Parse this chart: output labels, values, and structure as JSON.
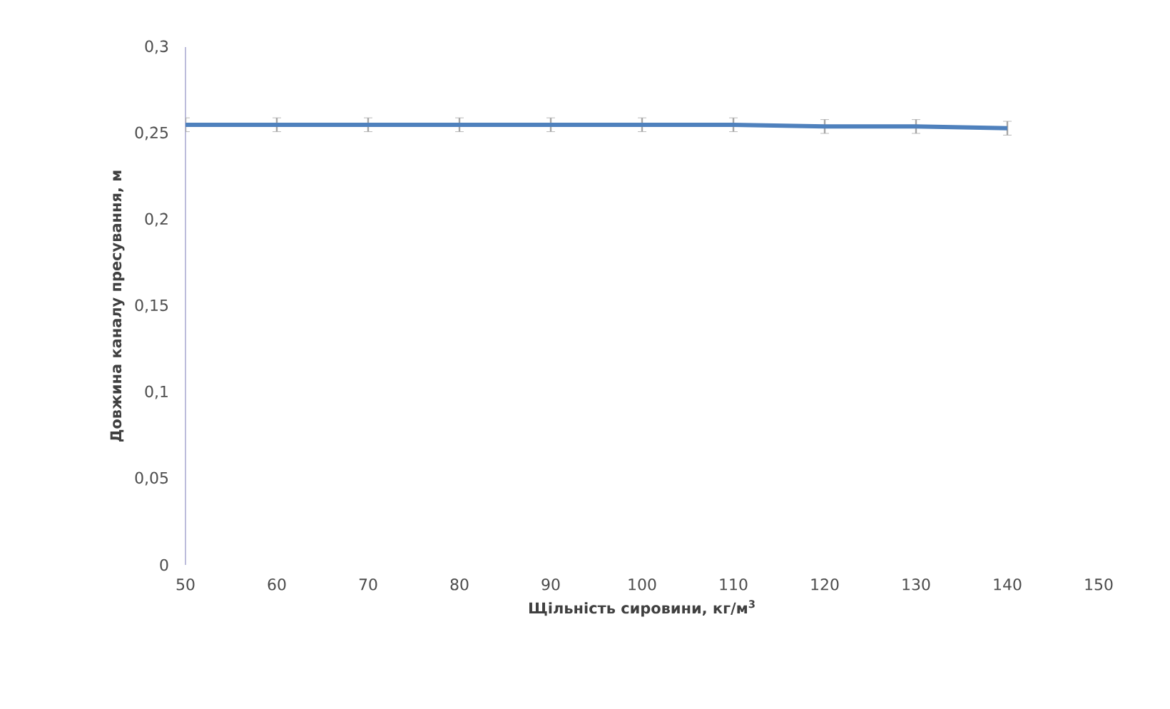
{
  "chart_data": {
    "type": "line",
    "xlabel": "Щільність сировини, кг/м$^{3}$",
    "ylabel": "Довжина каналу пресування, м",
    "x": [
      50,
      60,
      70,
      80,
      90,
      100,
      110,
      120,
      130,
      140
    ],
    "series": [
      {
        "color": "#4f81bd",
        "values": [
          0.255,
          0.255,
          0.255,
          0.255,
          0.255,
          0.255,
          0.255,
          0.254,
          0.254,
          0.253
        ],
        "errors": [
          0.004,
          0.004,
          0.004,
          0.004,
          0.004,
          0.004,
          0.004,
          0.004,
          0.004,
          0.004
        ]
      }
    ],
    "xlim": [
      50,
      150
    ],
    "xticks": [
      50,
      60,
      70,
      80,
      90,
      100,
      110,
      120,
      130,
      140,
      150
    ],
    "ylim": [
      0,
      0.3
    ],
    "yticks": [
      {
        "value": 0,
        "label": "0"
      },
      {
        "value": 0.05,
        "label": "0,05"
      },
      {
        "value": 0.1,
        "label": "0,1"
      },
      {
        "value": 0.15,
        "label": "0,15"
      },
      {
        "value": 0.2,
        "label": "0,2"
      },
      {
        "value": 0.25,
        "label": "0,25"
      },
      {
        "value": 0.3,
        "label": "0,3"
      }
    ],
    "marker": "none",
    "line_style": "solid"
  }
}
